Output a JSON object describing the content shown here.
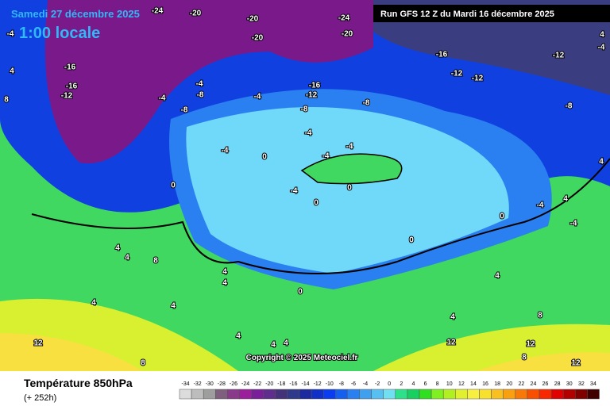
{
  "header": {
    "date": "Samedi 27 décembre 2025",
    "time": "1:00 locale",
    "run": "Run GFS 12 Z du Mardi 16 décembre 2025"
  },
  "map": {
    "contour_labels": [
      -24,
      -20,
      -20,
      -24,
      -20,
      -20,
      -4,
      -16,
      -16,
      -12,
      -16,
      -12,
      -12,
      -12,
      -8,
      -16,
      -12,
      -8,
      -8,
      -4,
      -4,
      -8,
      -8,
      -4,
      -4,
      -4,
      -4,
      -4,
      0,
      0,
      -4,
      0,
      0,
      0,
      0,
      -4,
      4,
      4,
      0,
      4,
      4,
      4,
      4,
      4,
      4,
      8,
      4,
      8,
      4,
      4,
      8,
      12,
      12,
      8,
      12,
      12,
      8,
      4,
      4,
      4,
      4,
      -4,
      -4
    ],
    "copyright": "Copyright © 2025 Meteociel.fr"
  },
  "footer": {
    "title": "Température 850hPa",
    "lead": "(+ 252h)"
  },
  "colorbar": {
    "ticks": [
      -34,
      -32,
      -30,
      -28,
      -26,
      -24,
      -22,
      -20,
      -18,
      -16,
      -14,
      -12,
      -10,
      -8,
      -6,
      -4,
      -2,
      0,
      2,
      4,
      6,
      8,
      10,
      12,
      14,
      16,
      18,
      20,
      22,
      24,
      26,
      28,
      30,
      32,
      34
    ],
    "colors": [
      "#dcdcdc",
      "#bdbdbd",
      "#9e9e9e",
      "#7e5f7e",
      "#8a3a8a",
      "#9b1f9b",
      "#7a1f9a",
      "#5f2d8c",
      "#44337a",
      "#2f3a8a",
      "#1c2aa0",
      "#1030c8",
      "#0a3cf0",
      "#1660f0",
      "#2a80f0",
      "#40a0f0",
      "#58c0f0",
      "#70e0f0",
      "#2ee08a",
      "#18d060",
      "#30e020",
      "#80f020",
      "#b0f020",
      "#e0f030",
      "#f8f040",
      "#f8e030",
      "#f8c020",
      "#f8a010",
      "#f87808",
      "#f85000",
      "#f82800",
      "#e00000",
      "#b00000",
      "#800000",
      "#400000"
    ]
  }
}
